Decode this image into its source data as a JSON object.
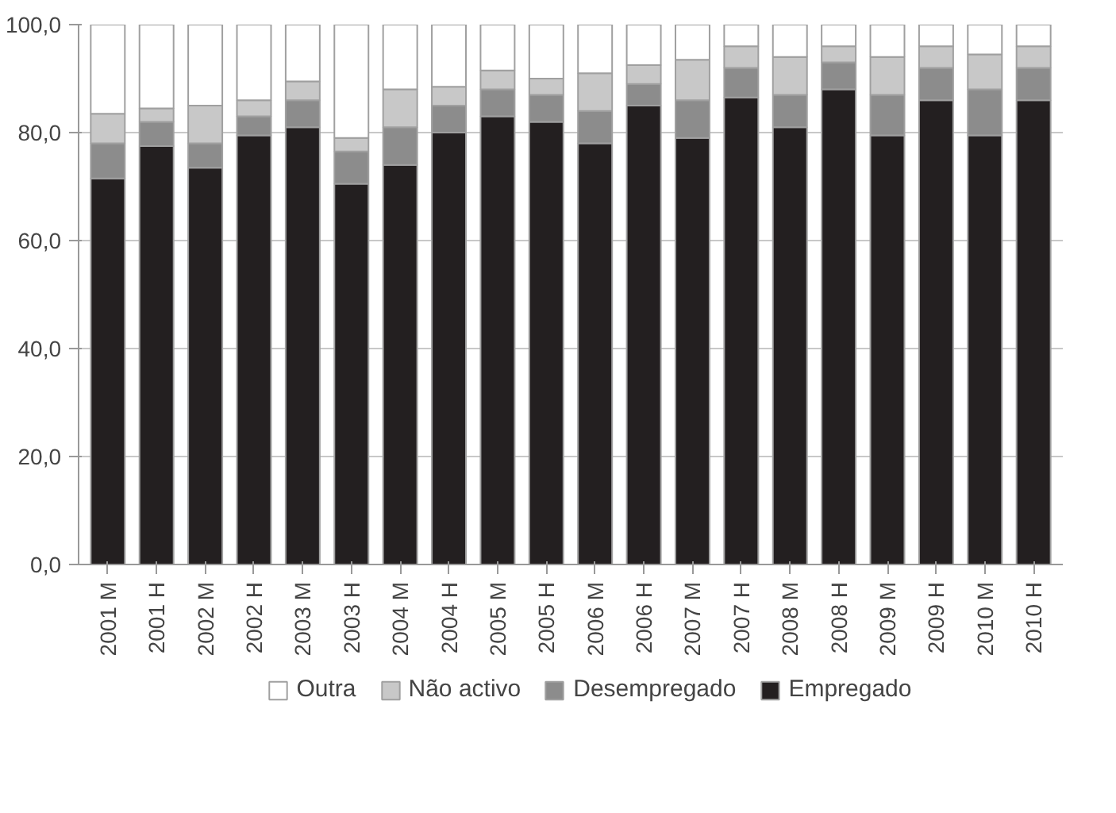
{
  "chart_data": {
    "type": "bar",
    "stacked": true,
    "categories": [
      "2001 M",
      "2001 H",
      "2002 M",
      "2002 H",
      "2003 M",
      "2003 H",
      "2004 M",
      "2004 H",
      "2005 M",
      "2005 H",
      "2006 M",
      "2006 H",
      "2007 M",
      "2007 H",
      "2008 M",
      "2008 H",
      "2009 M",
      "2009 H",
      "2010 M",
      "2010 H"
    ],
    "series": [
      {
        "name": "Empregado",
        "color": "#231f20",
        "values": [
          71.5,
          77.5,
          73.5,
          79.5,
          81,
          70.5,
          74,
          80,
          83,
          82,
          78,
          85,
          79,
          86.5,
          81,
          88,
          79.5,
          86,
          79.5,
          86
        ]
      },
      {
        "name": "Desempregado",
        "color": "#8c8c8c",
        "values": [
          6.5,
          4.5,
          4.5,
          3.5,
          5,
          6,
          7,
          5,
          5,
          5,
          6,
          4,
          7,
          5.5,
          6,
          5,
          7.5,
          6,
          8.5,
          6
        ]
      },
      {
        "name": "Não activo",
        "color": "#c8c8c8",
        "values": [
          5.5,
          2.5,
          7,
          3,
          3.5,
          2.5,
          7,
          3.5,
          3.5,
          3,
          7,
          3.5,
          7.5,
          4,
          7,
          3,
          7,
          4,
          6.5,
          4
        ]
      },
      {
        "name": "Outra",
        "color": "#ffffff",
        "values": [
          16.5,
          15.5,
          15,
          14,
          10.5,
          21,
          12,
          11.5,
          8.5,
          10,
          9,
          7.5,
          6.5,
          4,
          6,
          4,
          6,
          4,
          5.5,
          4
        ]
      }
    ],
    "ylim": [
      0,
      100
    ],
    "yticks": [
      {
        "value": 0,
        "label": "0,0"
      },
      {
        "value": 20,
        "label": "20,0"
      },
      {
        "value": 40,
        "label": "40,0"
      },
      {
        "value": 60,
        "label": "60,0"
      },
      {
        "value": 80,
        "label": "80,0"
      },
      {
        "value": 100,
        "label": "100,0"
      }
    ],
    "grid": "y",
    "legend": "bottom"
  }
}
